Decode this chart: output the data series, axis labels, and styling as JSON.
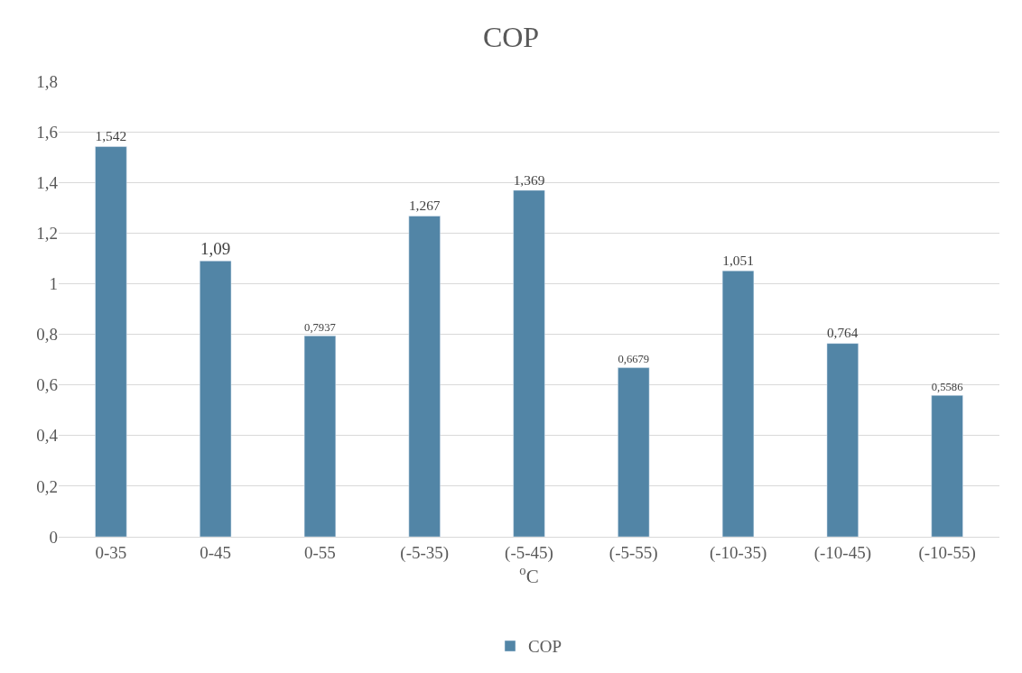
{
  "chart_data": {
    "type": "bar",
    "title": "COP",
    "xlabel": "$^{o}$C",
    "categories": [
      "0-35",
      "0-45",
      "0-55",
      "(-5-35)",
      "(-5-45)",
      "(-5-55)",
      "(-10-35)",
      "(-10-45)",
      "(-10-55)"
    ],
    "series": [
      {
        "name": "COP",
        "color": "#5285a6",
        "values": [
          1.542,
          1.09,
          0.7937,
          1.267,
          1.369,
          0.6679,
          1.051,
          0.764,
          0.5586
        ],
        "value_labels": [
          "1,542",
          "1,09",
          "0,7937",
          "1,267",
          "1,369",
          "0,6679",
          "1,051",
          "0,764",
          "0,5586"
        ]
      }
    ],
    "ylim": [
      0,
      1.8
    ],
    "yticks": [
      0,
      {
        "value": 0.2,
        "label": "0,2"
      },
      {
        "value": 0.4,
        "label": "0,4"
      },
      {
        "value": 0.6,
        "label": "0,6"
      },
      {
        "value": 0.8,
        "label": "0,8"
      },
      1,
      {
        "value": 1.2,
        "label": "1,2"
      },
      {
        "value": 1.4,
        "label": "1,4"
      },
      {
        "value": 1.6,
        "label": "1,6"
      },
      {
        "value": 1.8,
        "label": "1,8"
      }
    ],
    "grid": "y",
    "legend": "bottom"
  }
}
